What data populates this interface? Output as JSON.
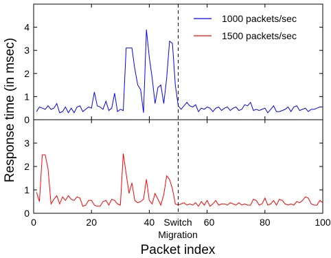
{
  "chart_data": [
    {
      "type": "line",
      "panel": "top",
      "xlim": [
        0,
        100
      ],
      "ylim": [
        0,
        5
      ],
      "yticks": [
        0,
        1,
        2,
        3,
        4
      ],
      "series": [
        {
          "name": "1000 packets/sec",
          "color": "#0000ff",
          "x": [
            1,
            2,
            3,
            4,
            5,
            6,
            7,
            8,
            9,
            10,
            11,
            12,
            13,
            14,
            15,
            16,
            17,
            18,
            19,
            20,
            21,
            22,
            23,
            24,
            25,
            26,
            27,
            28,
            29,
            30,
            31,
            32,
            33,
            34,
            35,
            36,
            37,
            38,
            39,
            40,
            41,
            42,
            43,
            44,
            45,
            46,
            47,
            48,
            49,
            50,
            51,
            52,
            53,
            54,
            55,
            56,
            57,
            58,
            59,
            60,
            61,
            62,
            63,
            64,
            65,
            66,
            67,
            68,
            69,
            70,
            71,
            72,
            73,
            74,
            75,
            76,
            77,
            78,
            79,
            80,
            81,
            82,
            83,
            84,
            85,
            86,
            87,
            88,
            89,
            90,
            91,
            92,
            93,
            94,
            95,
            96,
            97,
            98,
            99,
            100
          ],
          "values": [
            0.35,
            0.55,
            0.5,
            0.45,
            0.6,
            0.45,
            0.5,
            0.7,
            0.3,
            0.35,
            0.55,
            0.3,
            0.5,
            0.3,
            0.55,
            0.6,
            0.35,
            0.45,
            0.55,
            0.5,
            1.2,
            0.6,
            0.55,
            0.45,
            0.8,
            0.4,
            0.5,
            1.15,
            0.35,
            0.45,
            0.4,
            3.1,
            3.1,
            3.1,
            2.2,
            1.5,
            1.3,
            0.3,
            3.9,
            2.7,
            1.8,
            0.7,
            1.4,
            1.5,
            0.7,
            1.8,
            3.4,
            3.3,
            1.5,
            0.6,
            0.45,
            0.6,
            0.75,
            0.6,
            0.55,
            0.65,
            0.35,
            0.5,
            0.45,
            0.55,
            0.5,
            0.35,
            0.5,
            0.55,
            0.4,
            0.5,
            0.55,
            0.4,
            0.5,
            0.55,
            0.4,
            0.45,
            0.65,
            0.6,
            0.75,
            0.4,
            0.45,
            0.4,
            0.45,
            0.5,
            0.3,
            0.45,
            0.6,
            0.35,
            0.35,
            0.4,
            0.45,
            0.55,
            0.35,
            0.55,
            0.6,
            0.4,
            0.45,
            0.5,
            0.35,
            0.45,
            0.45,
            0.5,
            0.55,
            0.55
          ]
        }
      ]
    },
    {
      "type": "line",
      "panel": "bottom",
      "xlim": [
        0,
        100
      ],
      "ylim": [
        0,
        4
      ],
      "yticks": [
        0,
        1,
        2,
        3
      ],
      "series": [
        {
          "name": "1500 packets/sec",
          "color": "#ff0000",
          "x": [
            1,
            2,
            3,
            4,
            5,
            6,
            7,
            8,
            9,
            10,
            11,
            12,
            13,
            14,
            15,
            16,
            17,
            18,
            19,
            20,
            21,
            22,
            23,
            24,
            25,
            26,
            27,
            28,
            29,
            30,
            31,
            32,
            33,
            34,
            35,
            36,
            37,
            38,
            39,
            40,
            41,
            42,
            43,
            44,
            45,
            46,
            47,
            48,
            49,
            50,
            51,
            52,
            53,
            54,
            55,
            56,
            57,
            58,
            59,
            60,
            61,
            62,
            63,
            64,
            65,
            66,
            67,
            68,
            69,
            70,
            71,
            72,
            73,
            74,
            75,
            76,
            77,
            78,
            79,
            80,
            81,
            82,
            83,
            84,
            85,
            86,
            87,
            88,
            89,
            90,
            91,
            92,
            93,
            94,
            95,
            96,
            97,
            98,
            99,
            100
          ],
          "values": [
            0.9,
            0.5,
            2.5,
            2.5,
            1.9,
            0.4,
            0.6,
            0.75,
            0.4,
            0.7,
            0.55,
            0.75,
            0.6,
            0.55,
            0.7,
            0.65,
            0.3,
            0.35,
            0.55,
            0.55,
            0.35,
            0.3,
            0.3,
            0.5,
            0.55,
            0.35,
            0.6,
            0.55,
            0.4,
            0.35,
            2.55,
            1.7,
            0.85,
            1.3,
            0.55,
            0.45,
            0.5,
            0.6,
            1.45,
            0.55,
            0.4,
            0.85,
            0.6,
            0.35,
            0.8,
            1.6,
            1.45,
            1.05,
            0.4,
            0.35,
            0.4,
            0.45,
            0.35,
            0.4,
            0.35,
            0.45,
            0.3,
            0.5,
            0.35,
            0.55,
            0.3,
            0.4,
            0.55,
            0.35,
            0.4,
            0.4,
            0.35,
            0.45,
            0.4,
            0.35,
            0.45,
            0.35,
            0.4,
            0.35,
            0.35,
            0.6,
            0.55,
            0.35,
            0.4,
            0.65,
            0.35,
            0.4,
            0.55,
            0.35,
            0.6,
            0.55,
            0.4,
            0.35,
            0.4,
            0.35,
            0.5,
            0.45,
            0.55,
            0.7,
            0.65,
            0.4,
            0.35,
            0.35,
            0.55,
            0.45
          ]
        }
      ]
    }
  ],
  "axes": {
    "xticks": [
      0,
      20,
      40,
      60,
      80,
      100
    ],
    "switch_x": 50,
    "switch_label": "Switch",
    "migration_label": "Migration",
    "xlabel": "Packet index",
    "ylabel": "Response time (in msec)"
  }
}
